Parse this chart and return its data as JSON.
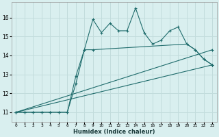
{
  "xlabel": "Humidex (Indice chaleur)",
  "background_color": "#d9efef",
  "grid_color": "#c2dcdc",
  "line_color": "#1e6b6b",
  "xlim": [
    -0.5,
    23.5
  ],
  "ylim": [
    10.5,
    16.8
  ],
  "xticks": [
    0,
    1,
    2,
    3,
    4,
    5,
    6,
    7,
    8,
    9,
    10,
    11,
    12,
    13,
    14,
    15,
    16,
    17,
    18,
    19,
    20,
    21,
    22,
    23
  ],
  "yticks": [
    11,
    12,
    13,
    14,
    15,
    16
  ],
  "line1_x": [
    0,
    1,
    2,
    3,
    4,
    5,
    6,
    7,
    8,
    9,
    10,
    11,
    12,
    13,
    14,
    15,
    16,
    17,
    18,
    19,
    20,
    21,
    22,
    23
  ],
  "line1_y": [
    11.0,
    11.0,
    11.0,
    11.0,
    11.0,
    11.0,
    11.0,
    12.9,
    14.3,
    15.9,
    15.2,
    15.7,
    15.3,
    15.3,
    16.5,
    15.2,
    14.6,
    14.8,
    15.3,
    15.5,
    14.6,
    14.3,
    13.8,
    13.5
  ],
  "line2_x": [
    0,
    1,
    2,
    3,
    4,
    5,
    6,
    7,
    8,
    9,
    20,
    21,
    22,
    23
  ],
  "line2_y": [
    11.0,
    11.0,
    11.0,
    11.0,
    11.0,
    11.0,
    11.0,
    12.5,
    14.3,
    14.3,
    14.6,
    14.3,
    13.8,
    13.5
  ],
  "line3_x": [
    0,
    23
  ],
  "line3_y": [
    11.0,
    14.3
  ],
  "line4_x": [
    0,
    23
  ],
  "line4_y": [
    11.0,
    13.5
  ]
}
